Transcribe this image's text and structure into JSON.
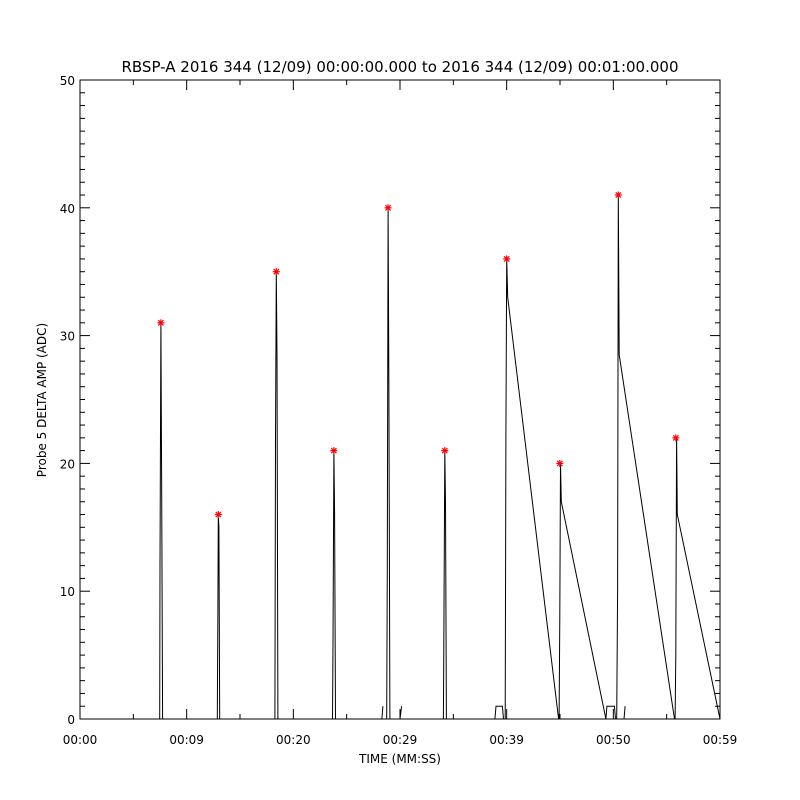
{
  "chart_data": {
    "type": "line",
    "title": "RBSP-A 2016 344 (12/09) 00:00:00.000 to 2016 344 (12/09) 00:01:00.000",
    "xlabel": "TIME (MM:SS)",
    "ylabel": "Probe 5 DELTA AMP (ADC)",
    "xlim": [
      0,
      60
    ],
    "ylim": [
      0,
      50
    ],
    "x_ticks": [
      {
        "value": 0,
        "label": "00:00"
      },
      {
        "value": 10,
        "label": "00:09"
      },
      {
        "value": 20,
        "label": "00:20"
      },
      {
        "value": 30,
        "label": "00:29"
      },
      {
        "value": 40,
        "label": "00:39"
      },
      {
        "value": 50,
        "label": "00:50"
      },
      {
        "value": 60,
        "label": "00:59"
      }
    ],
    "y_ticks": [
      0,
      10,
      20,
      30,
      40,
      50
    ],
    "grid": false,
    "line_color": "#000000",
    "marker_color": "#ff0000",
    "series": [
      {
        "x": [
          0,
          7.47,
          7.5,
          7.58,
          7.66,
          7.74,
          12.87,
          12.92,
          12.97,
          13.02,
          13.1,
          18.27,
          18.33,
          18.4,
          18.47,
          18.55,
          23.67,
          23.72,
          23.8,
          23.87,
          23.95,
          28.67,
          28.75,
          28.81,
          28.88,
          28.96,
          29.05,
          29.11,
          30.0,
          34.07,
          34.12,
          34.2,
          34.27,
          34.35,
          38.9,
          39.0,
          39.86,
          39.93,
          40.0,
          40.1,
          44.87,
          44.92,
          44.98,
          45.05,
          45.12,
          49.3,
          49.4,
          50.32,
          50.4,
          50.47,
          50.55,
          55.73,
          55.79,
          55.86,
          55.93,
          56.0,
          60
        ],
        "y": [
          0,
          0,
          12,
          31,
          17.5,
          0,
          0,
          7,
          16,
          15,
          0,
          0,
          22,
          35,
          28.5,
          0,
          0,
          6,
          21,
          16,
          0,
          0,
          0,
          12,
          40,
          25.5,
          0,
          0,
          0,
          0,
          7,
          21,
          17,
          0,
          0,
          0,
          0,
          22,
          36,
          33,
          0,
          0,
          8,
          20,
          17,
          0,
          0,
          0,
          10,
          41,
          28.5,
          0,
          0,
          5,
          22,
          16,
          0
        ]
      }
    ],
    "peaks": [
      {
        "x": 7.58,
        "y": 31
      },
      {
        "x": 12.97,
        "y": 16
      },
      {
        "x": 18.4,
        "y": 35
      },
      {
        "x": 23.8,
        "y": 21
      },
      {
        "x": 28.88,
        "y": 40
      },
      {
        "x": 34.2,
        "y": 21
      },
      {
        "x": 40.0,
        "y": 36
      },
      {
        "x": 44.98,
        "y": 20
      },
      {
        "x": 50.47,
        "y": 41
      },
      {
        "x": 55.86,
        "y": 22
      }
    ],
    "low_level_blips": [
      {
        "x": [
          28.3,
          28.4
        ],
        "y": [
          0,
          1
        ]
      },
      {
        "x": [
          30.0,
          30.15
        ],
        "y": [
          0,
          1
        ]
      },
      {
        "x": [
          38.9,
          39.0,
          39.6,
          39.7
        ],
        "y": [
          0,
          1,
          1,
          0
        ]
      },
      {
        "x": [
          49.3,
          49.4,
          50.1,
          50.2
        ],
        "y": [
          0,
          1,
          1,
          0
        ]
      },
      {
        "x": [
          51.0,
          51.1
        ],
        "y": [
          0,
          1
        ]
      }
    ]
  }
}
